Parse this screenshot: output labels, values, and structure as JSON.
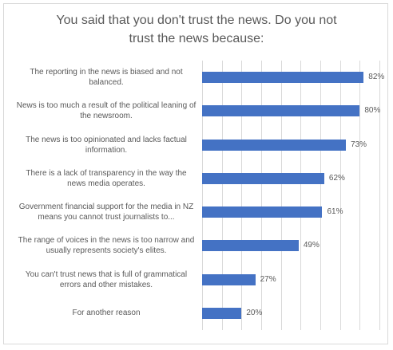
{
  "chart_data": {
    "type": "bar",
    "orientation": "horizontal",
    "title": "You said that you don't trust the news. Do you not trust the news because:",
    "categories": [
      "The reporting in the news is biased and not balanced.",
      "News is too much a result of the political leaning of the newsroom.",
      "The news is too opinionated and lacks factual information.",
      "There is a lack of transparency in the way the news media operates.",
      "Government financial support for the media in NZ means you cannot trust journalists to...",
      "The range of voices in the news is too narrow and usually represents society's elites.",
      "You can't trust news that is full of grammatical errors and other mistakes.",
      "For another reason"
    ],
    "values": [
      82,
      80,
      73,
      62,
      61,
      49,
      27,
      20
    ],
    "value_labels": [
      "82%",
      "80%",
      "73%",
      "62%",
      "61%",
      "49%",
      "27%",
      "20%"
    ],
    "color": "#4472c4",
    "xlim": [
      0,
      90
    ],
    "xticks": [
      0,
      10,
      20,
      30,
      40,
      50,
      60,
      70,
      80,
      90
    ],
    "grid": true
  }
}
